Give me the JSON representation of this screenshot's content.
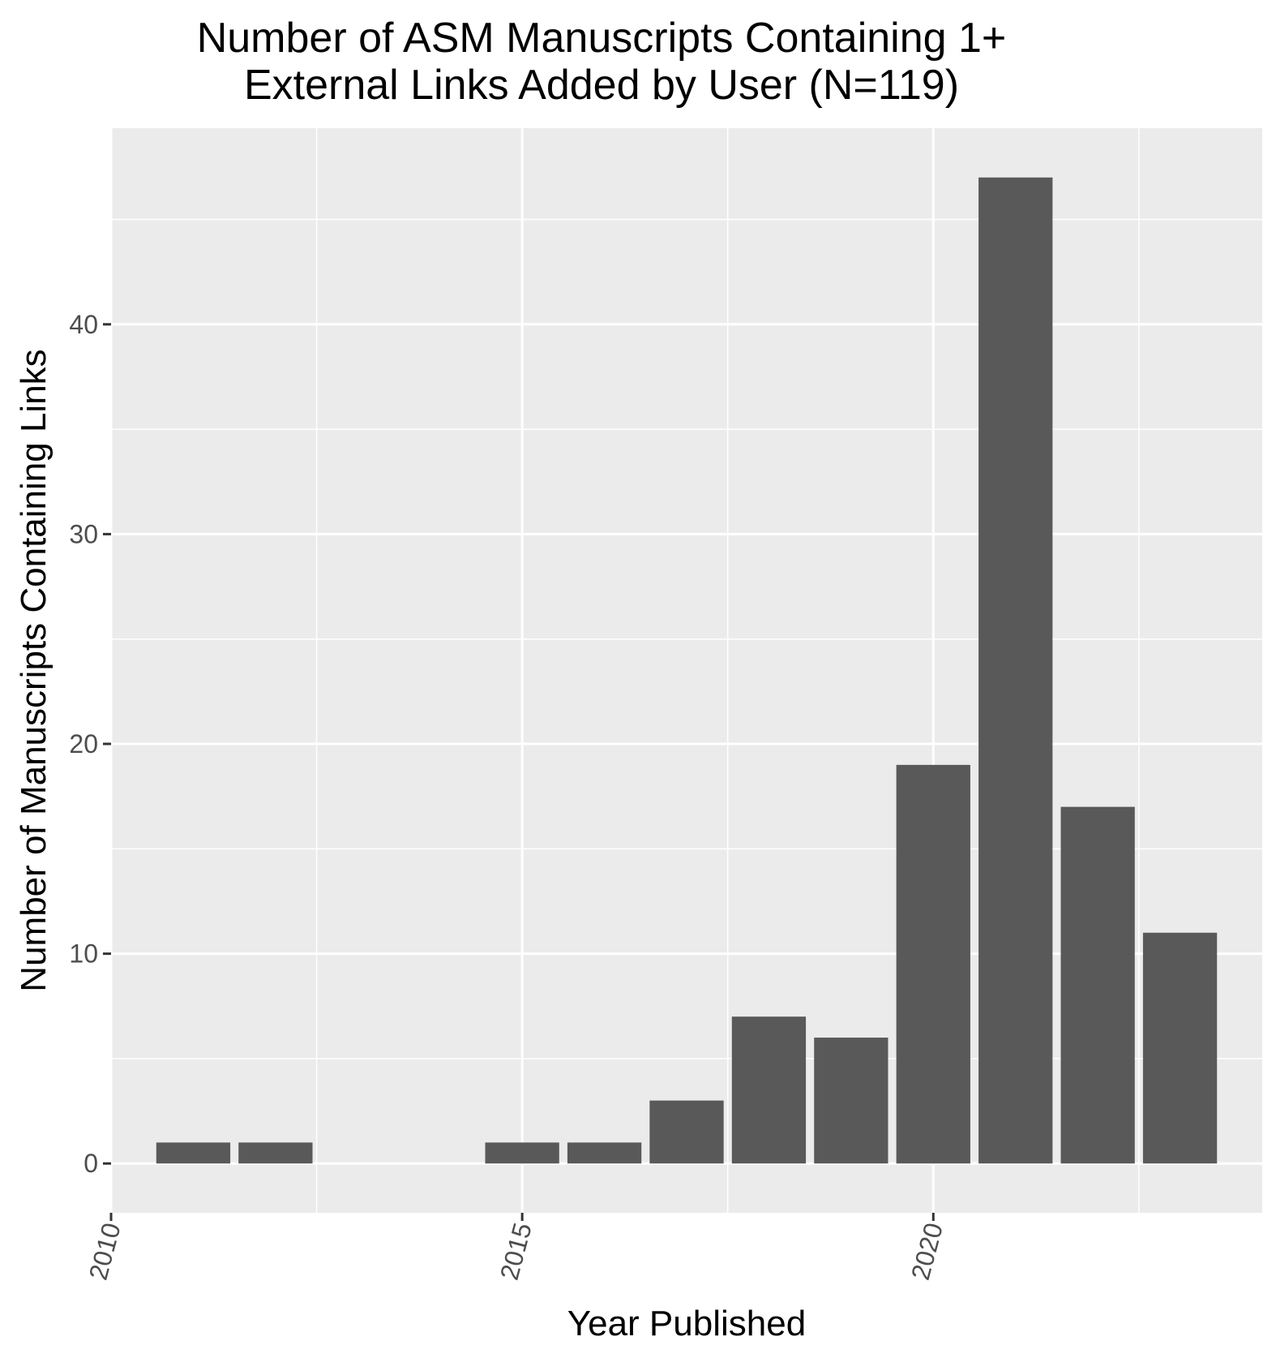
{
  "chart_data": {
    "type": "bar",
    "title_lines": [
      "Number of ASM Manuscripts Containing 1+",
      "External Links Added by User (N=119)"
    ],
    "xlabel": "Year Published",
    "ylabel": "Number of Manuscripts Containing Links",
    "x": [
      2011,
      2012,
      2015,
      2016,
      2017,
      2018,
      2019,
      2020,
      2021,
      2022,
      2023
    ],
    "values": [
      1,
      1,
      1,
      1,
      3,
      7,
      6,
      19,
      47,
      17,
      11
    ],
    "xlim": [
      2010,
      2024
    ],
    "ylim": [
      -2.35,
      49.35
    ],
    "x_ticks": [
      "2010",
      "2015",
      "2020"
    ],
    "y_ticks": [
      "0",
      "10",
      "20",
      "30",
      "40"
    ],
    "grid": true,
    "bar_color": "#595959",
    "panel_color": "#ebebeb",
    "grid_color": "#ffffff"
  }
}
